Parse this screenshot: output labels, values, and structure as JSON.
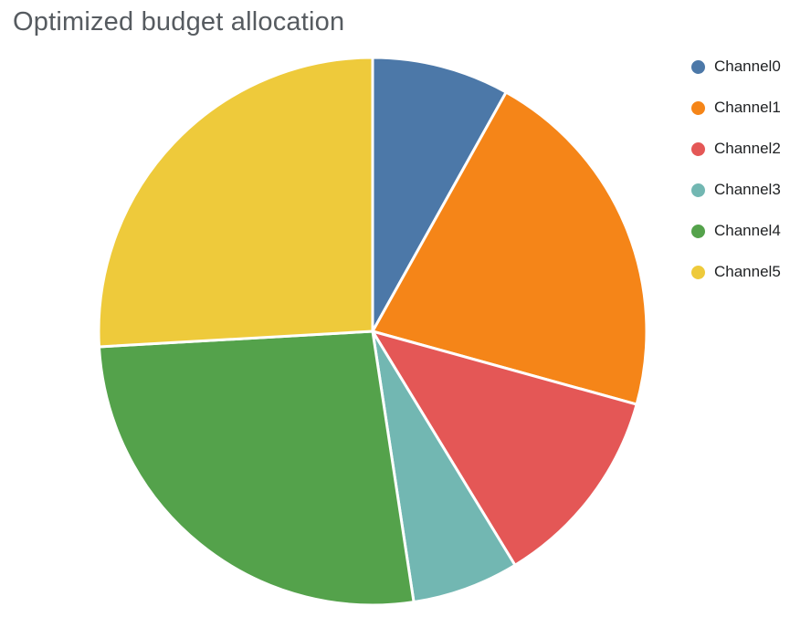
{
  "chart_data": {
    "type": "pie",
    "title": "Optimized budget allocation",
    "categories": [
      "Channel0",
      "Channel1",
      "Channel2",
      "Channel3",
      "Channel4",
      "Channel5"
    ],
    "values": [
      8.1,
      21.2,
      12.0,
      6.3,
      26.5,
      25.9
    ],
    "unit": "percent",
    "colors": [
      "#4C78A8",
      "#F58518",
      "#E45756",
      "#72B7B2",
      "#54A24B",
      "#EECA3B"
    ],
    "legend_position": "right",
    "start_angle_deg": 0,
    "direction": "clockwise",
    "slice_gap_color": "#ffffff"
  }
}
